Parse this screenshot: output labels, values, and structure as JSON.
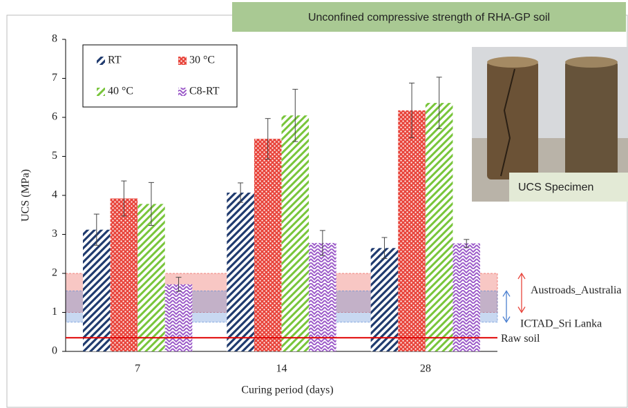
{
  "chart_data": {
    "type": "bar",
    "title": "Unconfined compressive strength of RHA-GP soil",
    "x_label": "Curing period (days)",
    "y_label": "UCS (MPa)",
    "categories": [
      "7",
      "14",
      "28"
    ],
    "series": [
      {
        "name": "RT",
        "color": "#1f3a6e",
        "values": [
          3.12,
          4.07,
          2.65
        ],
        "errors": [
          0.4,
          0.25,
          0.27
        ]
      },
      {
        "name": "30 °C",
        "color": "#e8453c",
        "values": [
          3.92,
          5.45,
          6.18
        ],
        "errors": [
          0.45,
          0.52,
          0.7
        ]
      },
      {
        "name": "40 °C",
        "color": "#78c53a",
        "values": [
          3.78,
          6.05,
          6.37
        ],
        "errors": [
          0.55,
          0.67,
          0.66
        ]
      },
      {
        "name": "C8-RT",
        "color": "#9c5bc9",
        "values": [
          1.72,
          2.78,
          2.77
        ],
        "errors": [
          0.18,
          0.32,
          0.1
        ]
      }
    ],
    "ylim": [
      0,
      8
    ],
    "yticks": [
      0,
      1,
      2,
      3,
      4,
      5,
      6,
      7,
      8
    ],
    "bands": [
      {
        "label": "Austroads_Australia",
        "range": [
          1,
          2
        ],
        "color": "#e8453c"
      },
      {
        "label": "ICTAD_Sri Lanka",
        "range": [
          0.75,
          1.55
        ],
        "color": "#4a7fd0"
      }
    ],
    "reference_line": {
      "label": "Raw soil",
      "value": 0.35,
      "color": "#e00000"
    },
    "photo_caption": "UCS Specimen"
  }
}
